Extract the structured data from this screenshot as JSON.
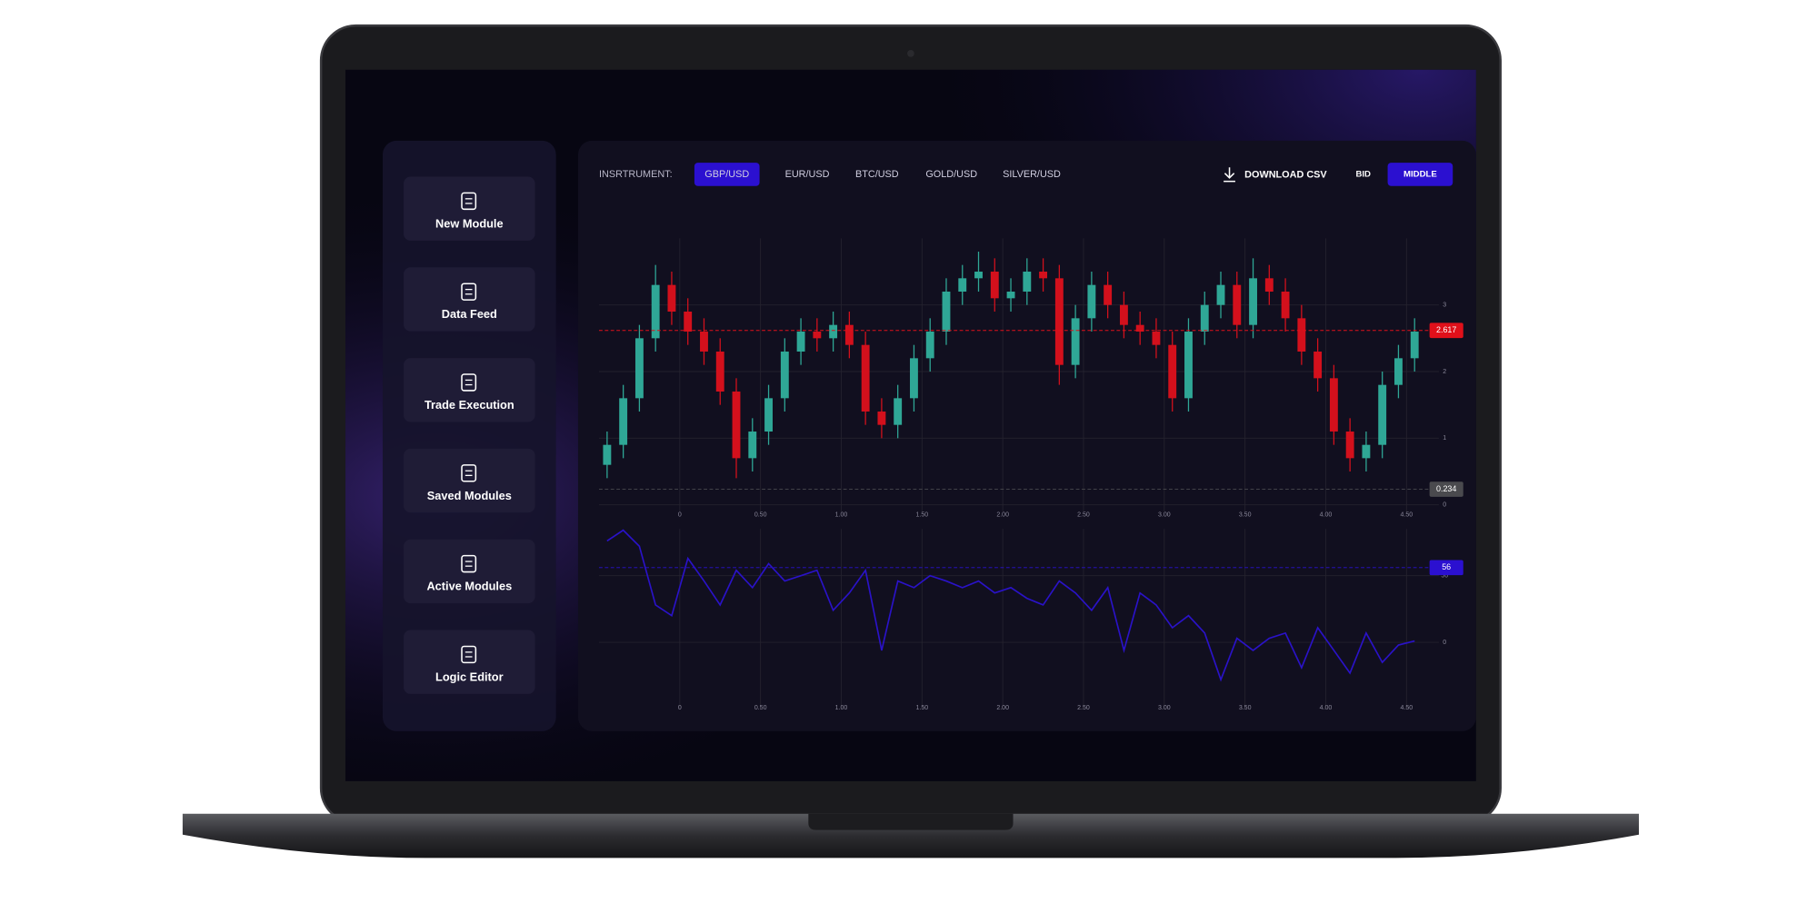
{
  "sidebar": {
    "items": [
      {
        "label": "New Module"
      },
      {
        "label": "Data Feed"
      },
      {
        "label": "Trade Execution"
      },
      {
        "label": "Saved Modules"
      },
      {
        "label": "Active Modules"
      },
      {
        "label": "Logic Editor"
      }
    ]
  },
  "toolbar": {
    "instrument_label": "INSRTRUMENT:",
    "instruments": [
      "GBP/USD",
      "EUR/USD",
      "BTC/USD",
      "GOLD/USD",
      "SILVER/USD"
    ],
    "active_instrument": 0,
    "download": "DOWNLOAD CSV",
    "price_modes": [
      "BID",
      "MIDDLE"
    ],
    "active_mode": 1,
    "accent": "#2b10d0"
  },
  "chart_data": [
    {
      "type": "candlestick",
      "up_color": "#2fa796",
      "down_color": "#d3101c",
      "grid": true,
      "x": [
        -0.45,
        -0.35,
        -0.25,
        -0.15,
        -0.05,
        0.05,
        0.15,
        0.25,
        0.35,
        0.45,
        0.55,
        0.65,
        0.75,
        0.85,
        0.95,
        1.05,
        1.15,
        1.25,
        1.35,
        1.45,
        1.55,
        1.65,
        1.75,
        1.85,
        1.95,
        2.05,
        2.15,
        2.25,
        2.35,
        2.45,
        2.55,
        2.65,
        2.75,
        2.85,
        2.95,
        3.05,
        3.15,
        3.25,
        3.35,
        3.45,
        3.55,
        3.65,
        3.75,
        3.85,
        3.95,
        4.05,
        4.15,
        4.25,
        4.35,
        4.45,
        4.55
      ],
      "ohlc": [
        [
          0.6,
          1.1,
          0.4,
          0.9
        ],
        [
          0.9,
          1.8,
          0.7,
          1.6
        ],
        [
          1.6,
          2.7,
          1.4,
          2.5
        ],
        [
          2.5,
          3.6,
          2.3,
          3.3
        ],
        [
          3.3,
          3.5,
          2.7,
          2.9
        ],
        [
          2.9,
          3.1,
          2.4,
          2.6
        ],
        [
          2.6,
          2.8,
          2.1,
          2.3
        ],
        [
          2.3,
          2.5,
          1.5,
          1.7
        ],
        [
          1.7,
          1.9,
          0.4,
          0.7
        ],
        [
          0.7,
          1.3,
          0.5,
          1.1
        ],
        [
          1.1,
          1.8,
          0.9,
          1.6
        ],
        [
          1.6,
          2.5,
          1.4,
          2.3
        ],
        [
          2.3,
          2.8,
          2.1,
          2.6
        ],
        [
          2.6,
          2.8,
          2.3,
          2.5
        ],
        [
          2.5,
          2.9,
          2.3,
          2.7
        ],
        [
          2.7,
          2.9,
          2.2,
          2.4
        ],
        [
          2.4,
          2.6,
          1.2,
          1.4
        ],
        [
          1.4,
          1.6,
          1.0,
          1.2
        ],
        [
          1.2,
          1.8,
          1.0,
          1.6
        ],
        [
          1.6,
          2.4,
          1.4,
          2.2
        ],
        [
          2.2,
          2.8,
          2.0,
          2.6
        ],
        [
          2.6,
          3.4,
          2.4,
          3.2
        ],
        [
          3.2,
          3.6,
          3.0,
          3.4
        ],
        [
          3.4,
          3.8,
          3.2,
          3.5
        ],
        [
          3.5,
          3.7,
          2.9,
          3.1
        ],
        [
          3.1,
          3.4,
          2.9,
          3.2
        ],
        [
          3.2,
          3.7,
          3.0,
          3.5
        ],
        [
          3.5,
          3.7,
          3.2,
          3.4
        ],
        [
          3.4,
          3.6,
          1.8,
          2.1
        ],
        [
          2.1,
          3.0,
          1.9,
          2.8
        ],
        [
          2.8,
          3.5,
          2.6,
          3.3
        ],
        [
          3.3,
          3.5,
          2.8,
          3.0
        ],
        [
          3.0,
          3.2,
          2.5,
          2.7
        ],
        [
          2.7,
          2.9,
          2.4,
          2.6
        ],
        [
          2.6,
          2.8,
          2.2,
          2.4
        ],
        [
          2.4,
          2.6,
          1.4,
          1.6
        ],
        [
          1.6,
          2.8,
          1.4,
          2.6
        ],
        [
          2.6,
          3.2,
          2.4,
          3.0
        ],
        [
          3.0,
          3.5,
          2.8,
          3.3
        ],
        [
          3.3,
          3.5,
          2.5,
          2.7
        ],
        [
          2.7,
          3.7,
          2.5,
          3.4
        ],
        [
          3.4,
          3.6,
          3.0,
          3.2
        ],
        [
          3.2,
          3.4,
          2.6,
          2.8
        ],
        [
          2.8,
          3.0,
          2.1,
          2.3
        ],
        [
          2.3,
          2.5,
          1.7,
          1.9
        ],
        [
          1.9,
          2.1,
          0.9,
          1.1
        ],
        [
          1.1,
          1.3,
          0.5,
          0.7
        ],
        [
          0.7,
          1.1,
          0.5,
          0.9
        ],
        [
          0.9,
          2.0,
          0.7,
          1.8
        ],
        [
          1.8,
          2.4,
          1.6,
          2.2
        ],
        [
          2.2,
          2.8,
          2.0,
          2.6
        ]
      ],
      "xlim": [
        -0.5,
        4.7
      ],
      "ylim": [
        -0.1,
        4.0
      ],
      "yticks": [
        0,
        1,
        2,
        3
      ],
      "xticks": [
        0,
        {
          "value": 0.5,
          "label": "0.50"
        },
        {
          "value": 1,
          "label": "1.00"
        },
        {
          "value": 1.5,
          "label": "1.50"
        },
        {
          "value": 2,
          "label": "2.00"
        },
        {
          "value": 2.5,
          "label": "2.50"
        },
        {
          "value": 3,
          "label": "3.00"
        },
        {
          "value": 3.5,
          "label": "3.50"
        },
        {
          "value": 4,
          "label": "4.00"
        },
        {
          "value": 4.5,
          "label": "4.50"
        }
      ],
      "price_tags": [
        {
          "value": 2.617,
          "color": "#e0101a"
        },
        {
          "value": 0.234,
          "color": "#4a4a4e"
        }
      ]
    },
    {
      "type": "line",
      "color": "#2a12c8",
      "grid": true,
      "x": [
        -0.45,
        -0.35,
        -0.25,
        -0.15,
        -0.05,
        0.05,
        0.15,
        0.25,
        0.35,
        0.45,
        0.55,
        0.65,
        0.75,
        0.85,
        0.95,
        1.05,
        1.15,
        1.25,
        1.35,
        1.45,
        1.55,
        1.65,
        1.75,
        1.85,
        1.95,
        2.05,
        2.15,
        2.25,
        2.35,
        2.45,
        2.55,
        2.65,
        2.75,
        2.85,
        2.95,
        3.05,
        3.15,
        3.25,
        3.35,
        3.45,
        3.55,
        3.65,
        3.75,
        3.85,
        3.95,
        4.05,
        4.15,
        4.25,
        4.35,
        4.45,
        4.55
      ],
      "values": [
        76,
        84,
        72,
        28,
        20,
        63,
        46,
        28,
        54,
        41,
        59,
        46,
        50,
        54,
        24,
        37,
        54,
        -6,
        46,
        41,
        50,
        46,
        41,
        46,
        37,
        41,
        33,
        28,
        46,
        37,
        24,
        41,
        -6,
        37,
        28,
        11,
        20,
        7,
        -28,
        3,
        -6,
        3,
        7,
        -19,
        11,
        -6,
        -23,
        7,
        -15,
        -2,
        1
      ],
      "xlim": [
        -0.5,
        4.7
      ],
      "ylim": [
        -50,
        85
      ],
      "yticks": [
        0,
        50
      ],
      "xticks": [
        0,
        {
          "value": 0.5,
          "label": "0.50"
        },
        {
          "value": 1,
          "label": "1.00"
        },
        {
          "value": 1.5,
          "label": "1.50"
        },
        {
          "value": 2,
          "label": "2.00"
        },
        {
          "value": 2.5,
          "label": "2.50"
        },
        {
          "value": 3,
          "label": "3.00"
        },
        {
          "value": 3.5,
          "label": "3.50"
        },
        {
          "value": 4,
          "label": "4.00"
        },
        {
          "value": 4.5,
          "label": "4.50"
        }
      ],
      "price_tags": [
        {
          "value": 56,
          "color": "#2b10d0"
        }
      ]
    }
  ]
}
